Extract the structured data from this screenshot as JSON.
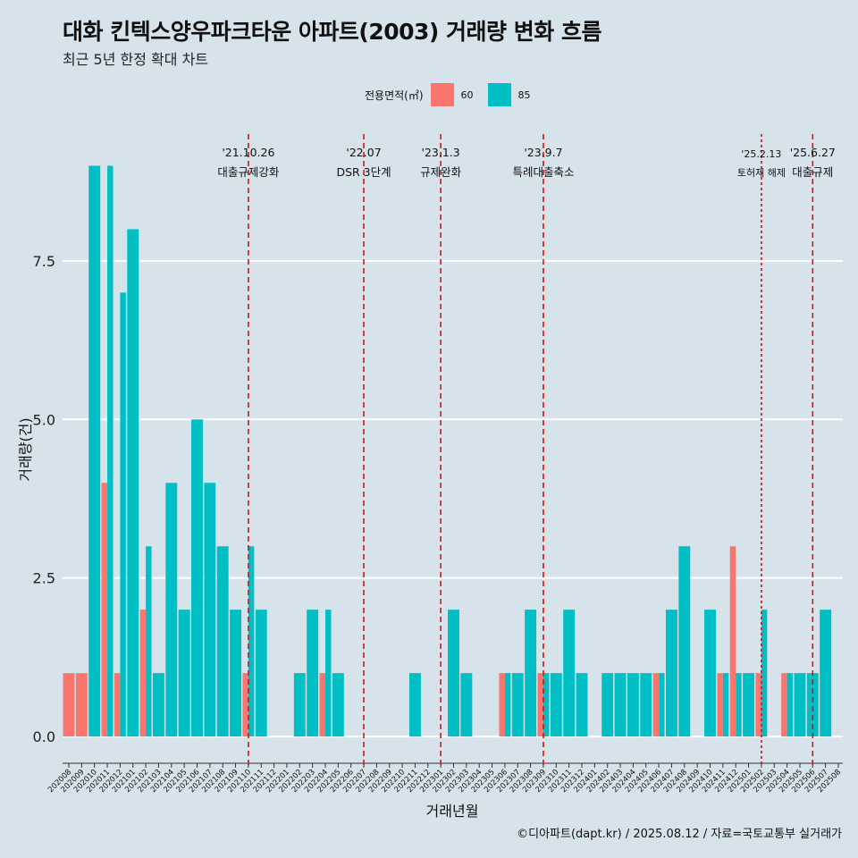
{
  "title": "대화 킨텍스양우파크타운 아파트(2003) 거래량 변화 흐름",
  "subtitle": "최근 5년 한정 확대 차트",
  "legend": {
    "title": "전용면적(㎡)",
    "items": [
      {
        "label": "60",
        "color": "#f8766d"
      },
      {
        "label": "85",
        "color": "#00bfc4"
      }
    ]
  },
  "caption": "©디아파트(dapt.kr) / 2025.08.12 / 자료=국토교통부 실거래가",
  "chart_data": {
    "type": "bar",
    "xlabel": "거래년월",
    "ylabel": "거래량(건)",
    "ylim": [
      -0.45,
      9.5
    ],
    "yticks": [
      0.0,
      2.5,
      5.0,
      7.5
    ],
    "ytick_labels": [
      "0.0",
      "2.5",
      "5.0",
      "7.5"
    ],
    "categories": [
      "202008",
      "202009",
      "202010",
      "202011",
      "202012",
      "202101",
      "202102",
      "202103",
      "202104",
      "202105",
      "202106",
      "202107",
      "202108",
      "202109",
      "202110",
      "202111",
      "202112",
      "202201",
      "202202",
      "202203",
      "202204",
      "202205",
      "202206",
      "202207",
      "202208",
      "202209",
      "202210",
      "202211",
      "202212",
      "202301",
      "202302",
      "202303",
      "202304",
      "202305",
      "202306",
      "202307",
      "202308",
      "202309",
      "202310",
      "202311",
      "202312",
      "202401",
      "202402",
      "202403",
      "202404",
      "202405",
      "202406",
      "202407",
      "202408",
      "202409",
      "202410",
      "202411",
      "202412",
      "202501",
      "202502",
      "202503",
      "202504",
      "202505",
      "202506",
      "202507",
      "202508"
    ],
    "series": [
      {
        "name": "60",
        "color": "#f8766d",
        "values": [
          1,
          1,
          0,
          4,
          1,
          0,
          2,
          0,
          0,
          0,
          0,
          0,
          0,
          0,
          1,
          0,
          0,
          0,
          0,
          0,
          1,
          0,
          0,
          0,
          0,
          0,
          0,
          0,
          0,
          0,
          0,
          0,
          0,
          0,
          1,
          0,
          0,
          1,
          0,
          0,
          0,
          0,
          0,
          0,
          0,
          0,
          1,
          0,
          0,
          0,
          0,
          1,
          3,
          0,
          1,
          0,
          1,
          0,
          0,
          0,
          0
        ]
      },
      {
        "name": "85",
        "color": "#00bfc4",
        "values": [
          0,
          0,
          9,
          9,
          7,
          8,
          3,
          1,
          4,
          2,
          5,
          4,
          3,
          2,
          3,
          2,
          0,
          0,
          1,
          2,
          2,
          1,
          0,
          0,
          0,
          0,
          0,
          1,
          0,
          0,
          2,
          1,
          0,
          0,
          1,
          1,
          2,
          1,
          1,
          2,
          1,
          0,
          1,
          1,
          1,
          1,
          1,
          2,
          3,
          0,
          2,
          1,
          1,
          1,
          2,
          0,
          1,
          1,
          1,
          2,
          0
        ]
      }
    ],
    "events": [
      {
        "date_label": "'21.10.26",
        "desc": "대출규제강화",
        "pos": 14.0,
        "style": "dashed"
      },
      {
        "date_label": "'22.07",
        "desc": "DSR 3단계",
        "pos": 23.0,
        "style": "dashed"
      },
      {
        "date_label": "'23.1.3",
        "desc": "규제완화",
        "pos": 29.0,
        "style": "dashed"
      },
      {
        "date_label": "'23.9.7",
        "desc": "특례대출축소",
        "pos": 37.0,
        "style": "dashed"
      },
      {
        "date_label": "'25.2.13",
        "desc": "토허제 해제",
        "pos": 54.0,
        "style": "dotted"
      },
      {
        "date_label": "'25.6.27",
        "desc": "대출규제",
        "pos": 58.0,
        "style": "dashed"
      }
    ]
  }
}
